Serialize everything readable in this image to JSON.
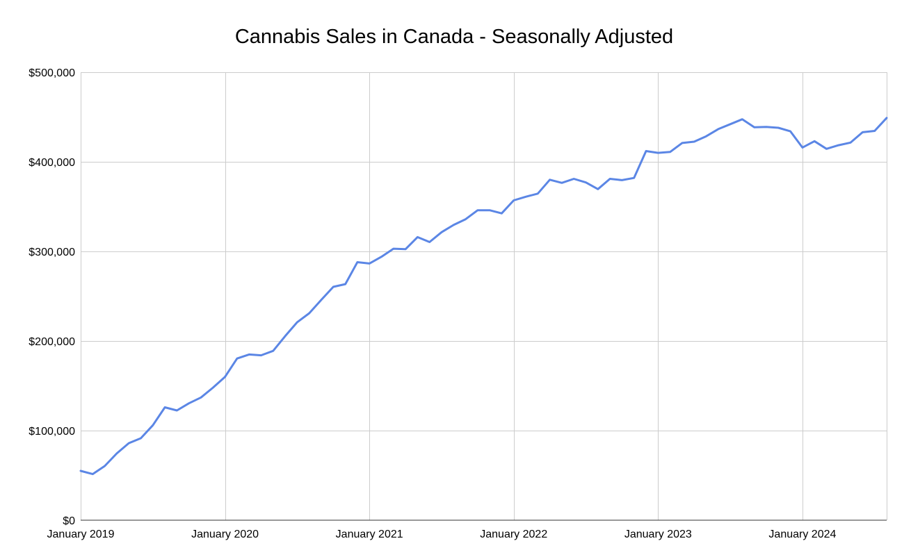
{
  "chart_data": {
    "type": "line",
    "title": "Cannabis Sales in Canada - Seasonally Adjusted",
    "xlabel": "",
    "ylabel": "",
    "ylim": [
      0,
      500000
    ],
    "y_ticks": [
      {
        "value": 0,
        "label": "$0"
      },
      {
        "value": 100000,
        "label": "$100,000"
      },
      {
        "value": 200000,
        "label": "$200,000"
      },
      {
        "value": 300000,
        "label": "$300,000"
      },
      {
        "value": 400000,
        "label": "$400,000"
      },
      {
        "value": 500000,
        "label": "$500,000"
      }
    ],
    "x_ticks": [
      {
        "value": "2019-01",
        "label": "January 2019"
      },
      {
        "value": "2020-01",
        "label": "January 2020"
      },
      {
        "value": "2021-01",
        "label": "January 2021"
      },
      {
        "value": "2022-01",
        "label": "January 2022"
      },
      {
        "value": "2023-01",
        "label": "January 2023"
      },
      {
        "value": "2024-01",
        "label": "January 2024"
      }
    ],
    "xlim": [
      "2019-01",
      "2024-08"
    ],
    "grid": true,
    "legend": "none",
    "series_color": "#5b86e5",
    "series": [
      {
        "x": [
          "2019-01",
          "2019-02",
          "2019-03",
          "2019-04",
          "2019-05",
          "2019-06",
          "2019-07",
          "2019-08",
          "2019-09",
          "2019-10",
          "2019-11",
          "2019-12",
          "2020-01",
          "2020-02",
          "2020-03",
          "2020-04",
          "2020-05",
          "2020-06",
          "2020-07",
          "2020-08",
          "2020-09",
          "2020-10",
          "2020-11",
          "2020-12",
          "2021-01",
          "2021-02",
          "2021-03",
          "2021-04",
          "2021-05",
          "2021-06",
          "2021-07",
          "2021-08",
          "2021-09",
          "2021-10",
          "2021-11",
          "2021-12",
          "2022-01",
          "2022-02",
          "2022-03",
          "2022-04",
          "2022-05",
          "2022-06",
          "2022-07",
          "2022-08",
          "2022-09",
          "2022-10",
          "2022-11",
          "2022-12",
          "2023-01",
          "2023-02",
          "2023-03",
          "2023-04",
          "2023-05",
          "2023-06",
          "2023-07",
          "2023-08",
          "2023-09",
          "2023-10",
          "2023-11",
          "2023-12",
          "2024-01",
          "2024-02",
          "2024-03",
          "2024-04",
          "2024-05",
          "2024-06",
          "2024-07",
          "2024-08"
        ],
        "values": [
          55000,
          51500,
          60500,
          74500,
          86000,
          91500,
          106000,
          126000,
          122500,
          130500,
          137000,
          148000,
          160000,
          180500,
          185000,
          184000,
          189000,
          205500,
          221000,
          231000,
          246000,
          260500,
          263500,
          288000,
          286500,
          294000,
          303000,
          302500,
          316000,
          310500,
          321500,
          329500,
          336000,
          346000,
          346000,
          342500,
          357000,
          361000,
          364500,
          380000,
          376500,
          381000,
          377000,
          369500,
          381000,
          379500,
          382000,
          412000,
          410000,
          411000,
          421000,
          422500,
          428500,
          436500,
          442000,
          447500,
          438500,
          439000,
          438000,
          434000,
          416000,
          423000,
          414500,
          418500,
          421500,
          433000,
          434500,
          449000
        ]
      }
    ]
  }
}
